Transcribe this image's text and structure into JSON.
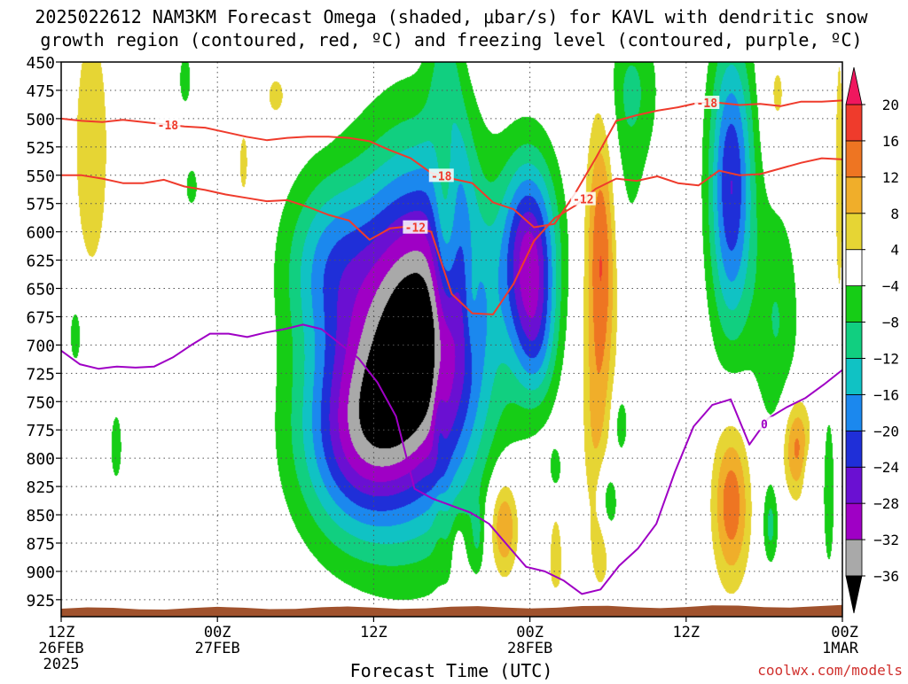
{
  "chart_data": {
    "type": "heatmap",
    "title_line1": "2025022612 NAM3KM Forecast Omega (shaded, μbar/s) for KAVL with dendritic snow",
    "title_line2": "growth region (contoured, red, ºC) and freezing level (contoured, purple, ºC)",
    "xlabel": "Forecast Time (UTC)",
    "credit": "coolwx.com/models",
    "x_unit": "hours since 12Z 26FEB 2025",
    "xlim": [
      0,
      60
    ],
    "ylim": [
      450,
      940
    ],
    "y_ticks": [
      450,
      475,
      500,
      525,
      550,
      575,
      600,
      625,
      650,
      675,
      700,
      725,
      750,
      775,
      800,
      825,
      850,
      875,
      900,
      925
    ],
    "x_ticks": [
      {
        "h": 0,
        "l1": "12Z",
        "l2": "26FEB",
        "l3": "2025"
      },
      {
        "h": 12,
        "l1": "00Z",
        "l2": "27FEB",
        "l3": ""
      },
      {
        "h": 24,
        "l1": "12Z",
        "l2": "",
        "l3": ""
      },
      {
        "h": 36,
        "l1": "00Z",
        "l2": "28FEB",
        "l3": ""
      },
      {
        "h": 48,
        "l1": "12Z",
        "l2": "",
        "l3": ""
      },
      {
        "h": 60,
        "l1": "00Z",
        "l2": "1MAR",
        "l3": ""
      }
    ],
    "grid": "dotted",
    "colorbar": {
      "levels": [
        -36,
        -32,
        -28,
        -24,
        -20,
        -16,
        -12,
        -8,
        -4,
        4,
        8,
        12,
        16,
        20
      ],
      "labels": [
        "20",
        "16",
        "12",
        "8",
        "4",
        "−4",
        "−8",
        "−12",
        "−16",
        "−20",
        "−24",
        "−28",
        "−32",
        "−36"
      ],
      "colors": [
        "#000000",
        "#a9a9a9",
        "#9f00c5",
        "#6a10d2",
        "#1f2fd8",
        "#1b88ee",
        "#10c2c4",
        "#11cf80",
        "#16cd16",
        "#ffffff",
        "#e6d534",
        "#f0ae2a",
        "#ee7522",
        "#ef3b2c",
        "#f0175e"
      ]
    },
    "omega_features": [
      {
        "h": 27.5,
        "p": 690,
        "sh": 5.2,
        "sp": 150,
        "amp": -40
      },
      {
        "h": 22.5,
        "p": 780,
        "sh": 4.5,
        "sp": 90,
        "amp": -22
      },
      {
        "h": 20.5,
        "p": 630,
        "sh": 3.5,
        "sp": 80,
        "amp": -14
      },
      {
        "h": 36,
        "p": 620,
        "sh": 2.1,
        "sp": 85,
        "amp": -27
      },
      {
        "h": 36.5,
        "p": 700,
        "sh": 1.6,
        "sp": 60,
        "amp": -10
      },
      {
        "h": 51.5,
        "p": 560,
        "sh": 1.7,
        "sp": 130,
        "amp": -24
      },
      {
        "h": 55,
        "p": 680,
        "sh": 1.8,
        "sp": 110,
        "amp": -8
      },
      {
        "h": 43,
        "p": 540,
        "sh": 2.4,
        "sp": 120,
        "amp": -5
      },
      {
        "h": 44,
        "p": 470,
        "sh": 2.0,
        "sp": 60,
        "amp": -6
      },
      {
        "h": 4.2,
        "p": 790,
        "sh": 0.5,
        "sp": 35,
        "amp": -7
      },
      {
        "h": 1.1,
        "p": 690,
        "sh": 0.7,
        "sp": 40,
        "amp": -6
      },
      {
        "h": 10,
        "p": 560,
        "sh": 0.8,
        "sp": 30,
        "amp": -5
      },
      {
        "h": 9.5,
        "p": 465,
        "sh": 0.6,
        "sp": 30,
        "amp": -6
      },
      {
        "h": 29.5,
        "p": 460,
        "sh": 1.2,
        "sp": 60,
        "amp": -9
      },
      {
        "h": 30,
        "p": 540,
        "sh": 1.5,
        "sp": 70,
        "amp": -8
      },
      {
        "h": 42,
        "p": 840,
        "sh": 0.8,
        "sp": 35,
        "amp": -9
      },
      {
        "h": 43,
        "p": 770,
        "sh": 0.6,
        "sp": 30,
        "amp": -7
      },
      {
        "h": 54.5,
        "p": 860,
        "sh": 0.6,
        "sp": 35,
        "amp": -9
      },
      {
        "h": 59,
        "p": 830,
        "sh": 0.5,
        "sp": 80,
        "amp": -7
      },
      {
        "h": 57.5,
        "p": 820,
        "sh": 0.5,
        "sp": 30,
        "amp": -6
      },
      {
        "h": 29,
        "p": 810,
        "sh": 0.6,
        "sp": 30,
        "amp": -6
      },
      {
        "h": 32,
        "p": 870,
        "sh": 0.5,
        "sp": 30,
        "amp": -5
      },
      {
        "h": 38,
        "p": 810,
        "sh": 0.6,
        "sp": 25,
        "amp": -5
      },
      {
        "h": 2.3,
        "p": 525,
        "sh": 1.5,
        "sp": 130,
        "amp": 7
      },
      {
        "h": 16.5,
        "p": 480,
        "sh": 1.2,
        "sp": 30,
        "amp": 5
      },
      {
        "h": 20,
        "p": 480,
        "sh": 1.0,
        "sp": 25,
        "amp": 5
      },
      {
        "h": 14,
        "p": 540,
        "sh": 0.6,
        "sp": 50,
        "amp": 5
      },
      {
        "h": 29.5,
        "p": 590,
        "sh": 1.0,
        "sp": 110,
        "amp": 13
      },
      {
        "h": 29,
        "p": 790,
        "sh": 0.5,
        "sp": 70,
        "amp": 6
      },
      {
        "h": 31.5,
        "p": 660,
        "sh": 0.6,
        "sp": 50,
        "amp": 5
      },
      {
        "h": 30.5,
        "p": 880,
        "sh": 0.5,
        "sp": 30,
        "amp": 5
      },
      {
        "h": 34,
        "p": 860,
        "sh": 1.1,
        "sp": 45,
        "amp": 14
      },
      {
        "h": 41.5,
        "p": 615,
        "sh": 1.2,
        "sp": 130,
        "amp": 18
      },
      {
        "h": 41,
        "p": 780,
        "sh": 1.0,
        "sp": 90,
        "amp": 6
      },
      {
        "h": 41.5,
        "p": 880,
        "sh": 0.8,
        "sp": 40,
        "amp": 6
      },
      {
        "h": 38,
        "p": 900,
        "sh": 0.6,
        "sp": 25,
        "amp": 5
      },
      {
        "h": 38,
        "p": 870,
        "sh": 0.5,
        "sp": 30,
        "amp": 5
      },
      {
        "h": 51.5,
        "p": 840,
        "sh": 1.4,
        "sp": 70,
        "amp": 15
      },
      {
        "h": 56.5,
        "p": 790,
        "sh": 1.1,
        "sp": 45,
        "amp": 14
      },
      {
        "h": 55,
        "p": 480,
        "sh": 1.0,
        "sp": 50,
        "amp": 5
      },
      {
        "h": 59.8,
        "p": 550,
        "sh": 0.4,
        "sp": 150,
        "amp": 6
      }
    ],
    "series": [
      {
        "p": [
          500,
          502,
          503,
          501,
          503,
          505,
          507,
          508,
          512,
          516,
          519,
          517,
          516,
          516,
          517,
          520,
          528,
          535,
          548,
          553,
          557,
          574,
          580,
          596,
          593,
          566,
          535,
          502,
          497,
          493,
          490,
          486,
          486,
          488,
          487,
          489,
          485,
          485,
          484
        ]
      },
      {
        "p": [
          550,
          550,
          553,
          557,
          557,
          554,
          560,
          563,
          567,
          570,
          573,
          572,
          578,
          585,
          590,
          607,
          597,
          595,
          600,
          655,
          672,
          673,
          646,
          608,
          588,
          577,
          562,
          553,
          555,
          551,
          557,
          559,
          546,
          550,
          549,
          544,
          539,
          535,
          536
        ]
      },
      {
        "p": [
          705,
          717,
          721,
          719,
          720,
          719,
          711,
          700,
          690,
          690,
          693,
          689,
          686,
          682,
          686,
          699,
          712,
          733,
          763,
          827,
          836,
          842,
          848,
          858,
          877,
          896,
          900,
          908,
          920,
          916,
          895,
          880,
          858,
          812,
          772,
          753,
          748,
          788,
          765,
          755,
          747,
          735,
          722
        ]
      }
    ]
  },
  "contour_labels": [
    "-18",
    "-18",
    "-12",
    "-12",
    "-18",
    "0"
  ],
  "contour_label_pos_h": [
    8.2,
    29.2,
    27.2,
    40.1,
    49.6,
    54
  ]
}
